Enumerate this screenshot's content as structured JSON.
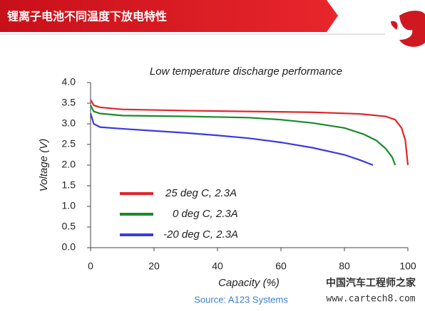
{
  "header": {
    "title": "锂离子电池不同温度下放电特性"
  },
  "chart_data": {
    "type": "line",
    "title": "Low temperature discharge performance",
    "x_label": "Capacity (%)",
    "y_label": "Voltage (V)",
    "source": "Source: A123 Systems",
    "xlim": [
      0,
      100
    ],
    "ylim": [
      0,
      4
    ],
    "xticks": [
      0,
      20,
      40,
      60,
      80,
      100
    ],
    "yticks": [
      {
        "value": 0,
        "label": "0.0"
      },
      {
        "value": 0.5,
        "label": "0.5"
      },
      {
        "value": 1,
        "label": "1.0"
      },
      {
        "value": 1.5,
        "label": "1.5"
      },
      {
        "value": 2,
        "label": "2.0"
      },
      {
        "value": 2.5,
        "label": "2.5"
      },
      {
        "value": 3,
        "label": "3.0"
      },
      {
        "value": 3.5,
        "label": "3.5"
      },
      {
        "value": 4,
        "label": "4.0"
      }
    ],
    "series": [
      {
        "name": "25 deg C, 2.3A",
        "color": "#e0262b",
        "x": [
          0,
          1,
          3,
          10,
          30,
          50,
          70,
          85,
          93,
          96,
          98,
          99.2,
          100
        ],
        "values": [
          3.58,
          3.45,
          3.4,
          3.35,
          3.32,
          3.3,
          3.28,
          3.24,
          3.18,
          3.1,
          2.9,
          2.6,
          2.0
        ]
      },
      {
        "name": "0 deg C, 2.3A",
        "color": "#1a8a2a",
        "x": [
          0,
          1,
          3,
          10,
          30,
          50,
          60,
          70,
          80,
          86,
          90,
          93,
          95,
          96
        ],
        "values": [
          3.45,
          3.3,
          3.25,
          3.2,
          3.18,
          3.15,
          3.1,
          3.02,
          2.9,
          2.75,
          2.6,
          2.4,
          2.2,
          2.0
        ]
      },
      {
        "name": "-20 deg C, 2.3A",
        "color": "#3a3ae0",
        "x": [
          0,
          1,
          3,
          10,
          20,
          30,
          40,
          50,
          60,
          70,
          80,
          85,
          89
        ],
        "values": [
          3.25,
          3.0,
          2.92,
          2.88,
          2.83,
          2.78,
          2.72,
          2.65,
          2.55,
          2.42,
          2.25,
          2.12,
          2.0
        ]
      }
    ]
  },
  "watermark": {
    "text": "中国汽车工程师之家",
    "url": "www.cartech8.com"
  }
}
